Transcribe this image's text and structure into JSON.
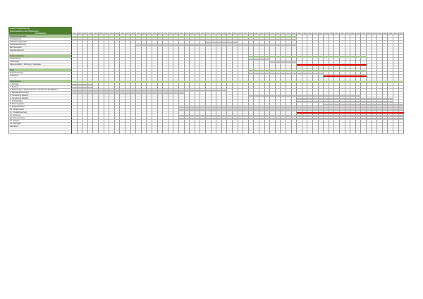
{
  "title": {
    "line1": "Gantt Projektplanung",
    "line2": "Arbeitspakete und Zeitplanung"
  },
  "header_label": "Arbeitspakete",
  "columns": [
    "KW01",
    "KW02",
    "KW03",
    "KW04",
    "KW05",
    "KW06",
    "KW07",
    "KW08",
    "KW09",
    "KW10",
    "KW11",
    "KW12",
    "KW13",
    "KW14",
    "KW15",
    "KW16",
    "KW17",
    "KW18",
    "KW19",
    "KW20",
    "KW21",
    "KW22",
    "KW23",
    "KW24",
    "KW25",
    "KW26",
    "KW27",
    "KW28",
    "KW29",
    "KW30",
    "KW31",
    "KW32",
    "KW33",
    "KW34",
    "KW35",
    "KW36",
    "KW37",
    "KW38",
    "KW39",
    "KW40",
    "KW41",
    "KW42",
    "KW43",
    "KW44",
    "KW45",
    "KW46",
    "KW47",
    "KW48",
    "KW49",
    "KW50",
    "KW51",
    "KW52",
    "KW01",
    "KW02",
    "KW03",
    "KW04",
    "KW05",
    "KW06",
    "KW07",
    "KW08",
    "KW09",
    "KW10"
  ],
  "colors": {
    "section": "#a9d08e",
    "section_bar": "#a9d08e",
    "task": "#b0b0b0",
    "critical": "#e00000",
    "header": "#4e7f2e"
  },
  "rows": [
    {
      "label": "Projektmanagement",
      "type": "section",
      "bars": [
        [
          0,
          41,
          "section_bar"
        ]
      ]
    },
    {
      "label": "Projektleitung",
      "type": "task",
      "bars": [
        [
          0,
          41,
          "task"
        ]
      ]
    },
    {
      "label": "Anforderungsanalyse",
      "type": "task",
      "bars": [
        [
          25,
          30,
          "task"
        ]
      ]
    },
    {
      "label": "Aufwandsschätzung",
      "type": "task",
      "bars": [
        [
          21,
          25,
          "task"
        ],
        [
          12,
          41,
          "task"
        ]
      ]
    },
    {
      "label": "Berichtswesen",
      "type": "task",
      "bars": []
    },
    {
      "label": "Abschlussbericht",
      "type": "task",
      "bars": []
    },
    {
      "label": "",
      "type": "blank",
      "bars": []
    },
    {
      "label": "Implementierung",
      "type": "section",
      "bars": [
        [
          33,
          54,
          "section_bar"
        ]
      ]
    },
    {
      "label": "Vorbereitung",
      "type": "task",
      "bars": [
        [
          33,
          36,
          "task"
        ]
      ]
    },
    {
      "label": "Umsetzung",
      "type": "task",
      "bars": [
        [
          37,
          41,
          "task"
        ]
      ]
    },
    {
      "label": "Dokumentation / Schulung / Übergabe",
      "type": "task",
      "bars": [
        [
          42,
          54,
          "critical"
        ]
      ]
    },
    {
      "label": "",
      "type": "blank",
      "bars": []
    },
    {
      "label": "Tests",
      "type": "section",
      "bars": [
        [
          33,
          54,
          "section_bar"
        ]
      ]
    },
    {
      "label": "Testvorbereitung",
      "type": "task",
      "bars": [
        [
          33,
          46,
          "task"
        ]
      ]
    },
    {
      "label": "Testphase",
      "type": "task",
      "bars": [
        [
          47,
          54,
          "critical"
        ]
      ]
    },
    {
      "label": "",
      "type": "blank",
      "bars": []
    },
    {
      "label": "Arbeitspakete",
      "type": "section",
      "bars": [
        [
          0,
          61,
          "section_bar"
        ]
      ]
    },
    {
      "label": "1. Konzept",
      "type": "task",
      "bars": [
        [
          0,
          3,
          "task"
        ]
      ]
    },
    {
      "label": "2. Entwurf",
      "type": "task",
      "bars": [
        [
          0,
          3,
          "task"
        ]
      ]
    },
    {
      "label": "3. Fachkonzept / Systemkonzept / Technische Spezifikation",
      "type": "task",
      "bars": [
        [
          0,
          28,
          "task"
        ]
      ]
    },
    {
      "label": "4. Konzeptabstimmung",
      "type": "task",
      "bars": [
        [
          0,
          20,
          "task"
        ]
      ]
    },
    {
      "label": "5. Umsetzung Modul A",
      "type": "task",
      "bars": [
        [
          33,
          53,
          "task"
        ]
      ]
    },
    {
      "label": "6. Umsetzung Modul B",
      "type": "task",
      "bars": [
        [
          42,
          59,
          "task"
        ]
      ]
    },
    {
      "label": "7. Schnittstellen",
      "type": "task",
      "bars": [
        [
          42,
          59,
          "task"
        ]
      ]
    },
    {
      "label": "8. Datenmigration",
      "type": "task",
      "bars": [
        [
          47,
          61,
          "task"
        ]
      ]
    },
    {
      "label": "9. Integrationstest",
      "type": "task",
      "bars": [
        [
          20,
          61,
          "task"
        ]
      ]
    },
    {
      "label": "10. Abnahmetest",
      "type": "task",
      "bars": [
        [
          20,
          61,
          "task"
        ]
      ]
    },
    {
      "label": "11. Produktivsetzung",
      "type": "task",
      "bars": [
        [
          42,
          61,
          "critical"
        ]
      ]
    },
    {
      "label": "12. Schulung",
      "type": "task",
      "bars": [
        [
          20,
          61,
          "task"
        ]
      ]
    },
    {
      "label": "13. Dokumentation",
      "type": "task",
      "bars": [
        [
          20,
          61,
          "task"
        ]
      ]
    },
    {
      "label": "14. Support",
      "type": "task",
      "bars": []
    },
    {
      "label": "15. Übergabe",
      "type": "task",
      "bars": []
    },
    {
      "label": "Abschluss",
      "type": "task",
      "bars": []
    },
    {
      "label": "",
      "type": "blank",
      "bars": []
    },
    {
      "label": "",
      "type": "blank",
      "bars": []
    }
  ]
}
